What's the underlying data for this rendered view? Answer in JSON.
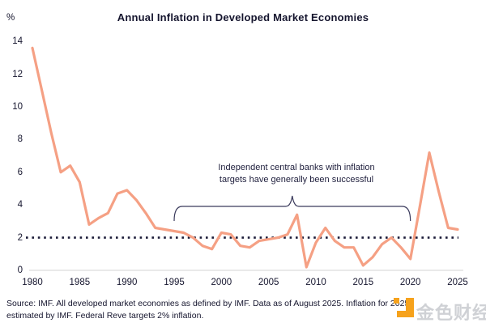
{
  "title": "Annual Inflation in Developed Market Economies",
  "y_axis": {
    "unit_label": "%",
    "ticks": [
      0,
      2,
      4,
      6,
      8,
      10,
      12,
      14
    ]
  },
  "x_axis": {
    "ticks": [
      1980,
      1985,
      1990,
      1995,
      2000,
      2005,
      2010,
      2015,
      2020,
      2025
    ]
  },
  "reference_line": {
    "value": 2,
    "style": "dotted",
    "color": "#1B1B38"
  },
  "annotation": {
    "line1": "Independent central banks with inflation",
    "line2": "targets have generally been successful",
    "bracket_start_year": 1995,
    "bracket_end_year": 2020
  },
  "source": {
    "line1": "Source: IMF. All developed market economies as defined by IMF. Data as of August 2025. Inflation for 2025",
    "line2": "estimated by IMF. Federal Reve targets 2% inflation."
  },
  "watermark": {
    "text": "金色财经",
    "logo_color": "#F6A21C"
  },
  "colors": {
    "line": "#F5A084",
    "reference": "#1B1B38",
    "axis": "#DCDCDC",
    "text": "#15152E",
    "bracket": "#3A3A5C"
  },
  "chart_data": {
    "type": "line",
    "title": "Annual Inflation in Developed Market Economies",
    "xlabel": "",
    "ylabel": "%",
    "ylim": [
      0,
      14
    ],
    "grid": false,
    "legend_position": "none",
    "reference_line_y": 2,
    "x": [
      1980,
      1981,
      1982,
      1983,
      1984,
      1985,
      1986,
      1987,
      1988,
      1989,
      1990,
      1991,
      1992,
      1993,
      1994,
      1995,
      1996,
      1997,
      1998,
      1999,
      2000,
      2001,
      2002,
      2003,
      2004,
      2005,
      2006,
      2007,
      2008,
      2009,
      2010,
      2011,
      2012,
      2013,
      2014,
      2015,
      2016,
      2017,
      2018,
      2019,
      2020,
      2021,
      2022,
      2023,
      2024,
      2025
    ],
    "series": [
      {
        "name": "Annual inflation, developed market economies (%)",
        "values": [
          13.6,
          11.0,
          8.4,
          6.0,
          6.4,
          5.4,
          2.8,
          3.2,
          3.5,
          4.7,
          4.9,
          4.3,
          3.5,
          2.6,
          2.5,
          2.4,
          2.3,
          2.0,
          1.5,
          1.3,
          2.3,
          2.2,
          1.5,
          1.4,
          1.8,
          1.9,
          2.0,
          2.2,
          3.4,
          0.2,
          1.7,
          2.6,
          1.8,
          1.4,
          1.4,
          0.3,
          0.8,
          1.6,
          2.0,
          1.4,
          0.7,
          3.9,
          7.2,
          4.8,
          2.6,
          2.5
        ]
      }
    ]
  }
}
